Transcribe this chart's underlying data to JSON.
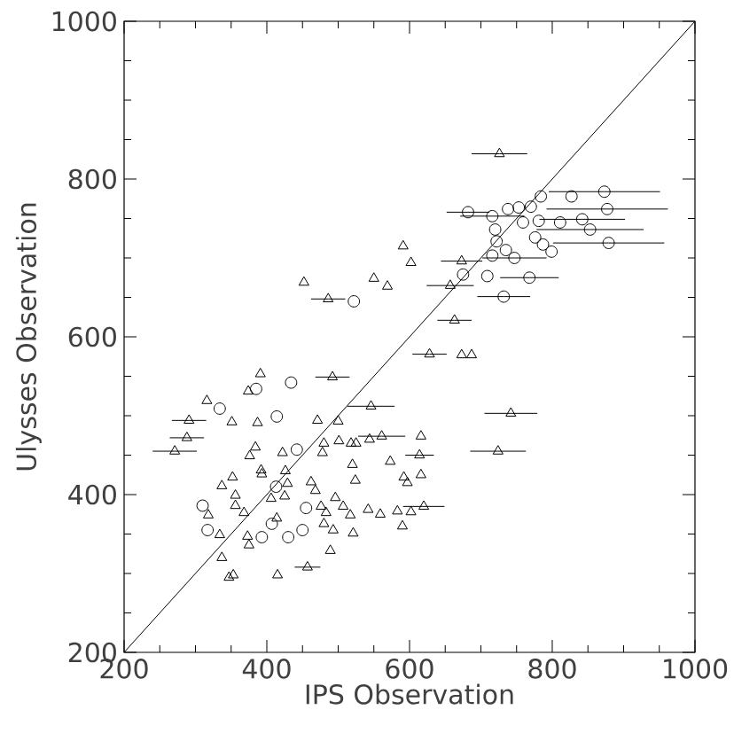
{
  "chart_data": {
    "type": "scatter",
    "xlabel": "IPS Observation",
    "ylabel": "Ulysses Observation",
    "xlim": [
      200,
      1000
    ],
    "ylim": [
      200,
      1000
    ],
    "xticks": [
      200,
      400,
      600,
      800,
      1000
    ],
    "yticks": [
      200,
      400,
      600,
      800,
      1000
    ],
    "series": [
      {
        "marker": "triangle",
        "color": "#000000",
        "x": [
          726,
          591,
          602,
          452,
          486,
          550,
          569,
          673,
          657,
          663,
          628,
          673,
          687,
          742,
          724,
          492,
          546,
          471,
          500,
          391,
          374,
          387,
          316,
          291,
          288,
          271,
          351,
          384,
          376,
          392,
          393,
          422,
          478,
          480,
          501,
          518,
          525,
          544,
          561,
          616,
          614,
          573,
          520,
          524,
          592,
          597,
          616,
          337,
          352,
          356,
          356,
          368,
          426,
          429,
          425,
          462,
          468,
          476,
          483,
          480,
          496,
          507,
          517,
          493,
          521,
          542,
          559,
          583,
          602,
          620,
          590,
          489,
          457,
          415,
          353,
          347,
          337,
          334,
          318,
          373,
          375,
          414,
          406
        ],
        "values": [
          832,
          715,
          694,
          669,
          648,
          674,
          664,
          696,
          665,
          621,
          578,
          577,
          577,
          503,
          455,
          549,
          512,
          494,
          493,
          553,
          531,
          491,
          519,
          494,
          472,
          455,
          492,
          460,
          449,
          431,
          426,
          453,
          453,
          465,
          468,
          465,
          465,
          470,
          474,
          474,
          450,
          442,
          438,
          418,
          422,
          415,
          425,
          411,
          422,
          399,
          386,
          377,
          430,
          414,
          398,
          416,
          405,
          385,
          377,
          363,
          396,
          385,
          374,
          355,
          351,
          381,
          375,
          379,
          378,
          385,
          360,
          329,
          308,
          298,
          298,
          295,
          320,
          349,
          374,
          347,
          336,
          370,
          395
        ],
        "xerrors": [
          39,
          null,
          null,
          null,
          24,
          null,
          null,
          29,
          33,
          24,
          24,
          null,
          null,
          37,
          39,
          24,
          33,
          null,
          null,
          null,
          null,
          null,
          null,
          24,
          24,
          31,
          null,
          null,
          null,
          null,
          null,
          null,
          null,
          null,
          null,
          null,
          null,
          null,
          33,
          null,
          20,
          null,
          null,
          null,
          null,
          null,
          null,
          null,
          null,
          null,
          null,
          null,
          null,
          null,
          null,
          null,
          null,
          null,
          null,
          null,
          null,
          null,
          null,
          null,
          null,
          null,
          null,
          null,
          null,
          29,
          null,
          null,
          18,
          null,
          null,
          null,
          null,
          null,
          null,
          null,
          null,
          null,
          null
        ]
      },
      {
        "marker": "circle",
        "color": "#000000",
        "x": [
          682,
          716,
          738,
          753,
          770,
          784,
          827,
          873,
          877,
          842,
          853,
          879,
          811,
          781,
          759,
          720,
          722,
          735,
          747,
          776,
          787,
          799,
          716,
          675,
          709,
          768,
          732,
          522,
          434,
          414,
          442,
          385,
          334,
          310,
          317,
          393,
          430,
          450,
          455,
          407,
          413
        ],
        "values": [
          758,
          753,
          762,
          764,
          765,
          778,
          778,
          784,
          762,
          749,
          736,
          719,
          745,
          747,
          745,
          736,
          721,
          710,
          700,
          726,
          717,
          708,
          703,
          679,
          677,
          675,
          651,
          645,
          542,
          499,
          457,
          534,
          509,
          386,
          355,
          346,
          346,
          355,
          383,
          363,
          410
        ],
        "xerrors": [
          30,
          45,
          null,
          null,
          null,
          null,
          null,
          78,
          85,
          60,
          75,
          78,
          null,
          null,
          null,
          null,
          null,
          null,
          45,
          null,
          null,
          null,
          null,
          null,
          null,
          41,
          37,
          null,
          null,
          null,
          null,
          null,
          null,
          null,
          null,
          null,
          null,
          null,
          null,
          null,
          null
        ]
      },
      {
        "type": "line",
        "color": "#000000",
        "x": [
          200,
          1000
        ],
        "values": [
          200,
          1000
        ]
      }
    ]
  }
}
